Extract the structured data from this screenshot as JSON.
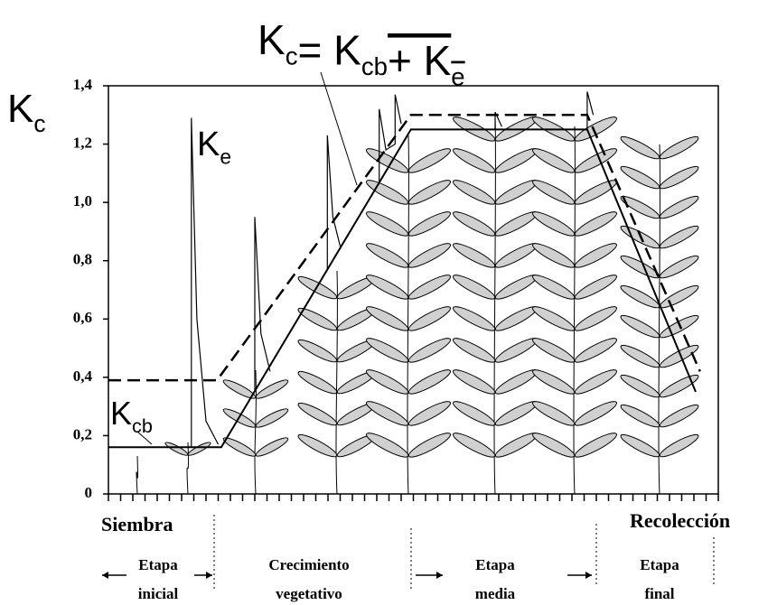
{
  "chart_data": {
    "type": "line",
    "title_parts": [
      {
        "text": "K",
        "sub": "c"
      },
      {
        "text": "= K",
        "sub": "cb"
      },
      {
        "text": "+ K",
        "sub": "e",
        "overline": true
      }
    ],
    "y_label": {
      "text": "K",
      "sub": "c"
    },
    "annotations": [
      {
        "text": "K",
        "sub": "e"
      },
      {
        "text": "K",
        "sub": "cb"
      }
    ],
    "xlim": [
      0,
      100
    ],
    "xticks": [
      0,
      2,
      4,
      6,
      8,
      10,
      12,
      14,
      16,
      18,
      20,
      22,
      24,
      26,
      28,
      30,
      32,
      34,
      36,
      38,
      40,
      42,
      44,
      46,
      48,
      50,
      52,
      54,
      56,
      58,
      60,
      62,
      64,
      66,
      68,
      70,
      72,
      74,
      76,
      78,
      80,
      82,
      84,
      86,
      88,
      90,
      92,
      94,
      96,
      98,
      100
    ],
    "ylim": [
      0,
      1.4
    ],
    "yticks": [
      0,
      {
        "value": 0.2,
        "label": "0,2"
      },
      {
        "value": 0.4,
        "label": "0,4"
      },
      {
        "value": 0.6,
        "label": "0,6"
      },
      {
        "value": 0.8,
        "label": "0,8"
      },
      {
        "value": 1.0,
        "label": "1,0"
      },
      {
        "value": 1.2,
        "label": "1,2"
      },
      {
        "value": 1.4,
        "label": "1,4"
      }
    ],
    "series": [
      {
        "color": "#000000",
        "dash": false,
        "width": 2,
        "x": [
          0,
          18.5,
          49.6,
          78.5,
          96.3
        ],
        "values": [
          0.16,
          0.16,
          1.25,
          1.25,
          0.35
        ]
      },
      {
        "color": "#000000",
        "dash": true,
        "width": 2.5,
        "x": [
          0,
          17.8,
          49.6,
          78.5,
          97
        ],
        "values": [
          0.39,
          0.39,
          1.3,
          1.3,
          0.42
        ]
      },
      {
        "color": "#000000",
        "dash": false,
        "width": 1.2,
        "x": [
          13.6,
          13.6,
          14.5,
          16,
          18,
          null,
          24,
          24,
          25,
          26.5,
          null,
          35.9,
          35.9,
          36.8,
          38,
          null,
          44.4,
          44.4,
          45.5,
          47,
          47,
          48,
          null,
          63.4,
          63.4,
          64.5,
          null,
          78.5,
          78.5,
          79.5
        ],
        "values": [
          0.16,
          1.29,
          0.6,
          0.25,
          0.17,
          null,
          0.35,
          0.95,
          0.55,
          0.42,
          null,
          0.77,
          1.23,
          0.95,
          0.85,
          null,
          1.07,
          1.32,
          1.18,
          1.2,
          1.37,
          1.27,
          null,
          1.25,
          1.31,
          1.26,
          null,
          1.25,
          1.38,
          1.3
        ]
      }
    ],
    "start_label": "Siembra",
    "end_label": "Recolección",
    "stages": [
      [
        "Etapa",
        "inicial"
      ],
      [
        "Crecimiento",
        "vegetativo"
      ],
      [
        "Etapa",
        "media"
      ],
      [
        "Etapa",
        "final"
      ]
    ]
  }
}
